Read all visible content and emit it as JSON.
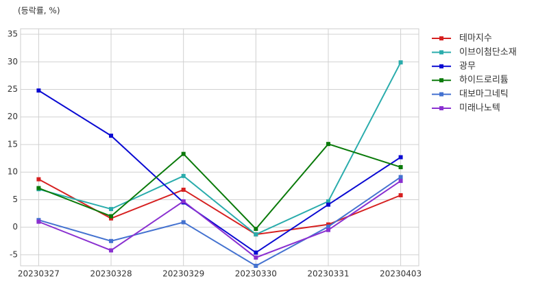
{
  "chart_data": {
    "type": "line",
    "y_label": "(등락률, %)",
    "categories": [
      "20230327",
      "20230328",
      "20230329",
      "20230330",
      "20230331",
      "20230403"
    ],
    "series": [
      {
        "name": "테마지수",
        "color": "#d62020",
        "values": [
          8.7,
          1.6,
          6.8,
          -1.3,
          0.5,
          5.8
        ]
      },
      {
        "name": "이브이첨단소재",
        "color": "#2aacac",
        "values": [
          6.9,
          3.3,
          9.3,
          -1.3,
          4.7,
          29.9
        ]
      },
      {
        "name": "광무",
        "color": "#0a0ad2",
        "values": [
          24.8,
          16.6,
          4.5,
          -4.6,
          4.1,
          12.7
        ]
      },
      {
        "name": "하이드로리튬",
        "color": "#0a7a0a",
        "values": [
          7.1,
          2.0,
          13.3,
          -0.3,
          15.1,
          10.9
        ]
      },
      {
        "name": "대보마그네틱",
        "color": "#4472d0",
        "values": [
          1.3,
          -2.5,
          0.9,
          -7.0,
          0.1,
          9.1
        ]
      },
      {
        "name": "미래나노텍",
        "color": "#8a30d0",
        "values": [
          1.0,
          -4.2,
          4.7,
          -5.5,
          -0.5,
          8.4
        ]
      }
    ],
    "ylim": [
      -7,
      36
    ],
    "yticks": [
      -5,
      0,
      5,
      10,
      15,
      20,
      25,
      30,
      35
    ],
    "grid": true
  }
}
